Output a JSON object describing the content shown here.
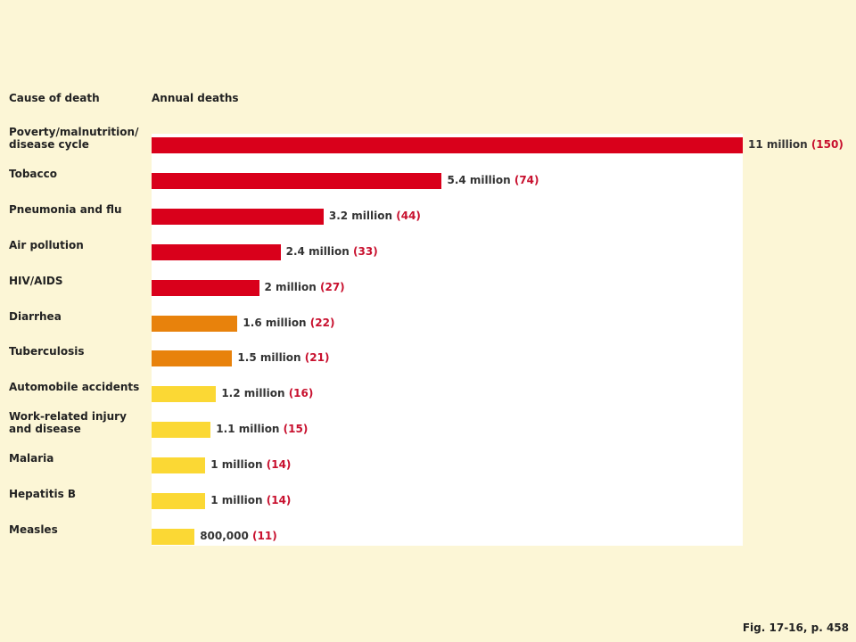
{
  "chart_data": {
    "type": "bar",
    "orientation": "horizontal",
    "category_header": "Cause of death",
    "value_header": "Annual deaths",
    "categories": [
      "Poverty/malnutrition/\ndisease cycle",
      "Tobacco",
      "Pneumonia and flu",
      "Air pollution",
      "HIV/AIDS",
      "Diarrhea",
      "Tuberculosis",
      "Automobile accidents",
      "Work-related injury\nand disease",
      "Malaria",
      "Hepatitis B",
      "Measles"
    ],
    "values": [
      11000000,
      5400000,
      3200000,
      2400000,
      2000000,
      1600000,
      1500000,
      1200000,
      1100000,
      1000000,
      1000000,
      800000
    ],
    "value_labels": [
      "11 million",
      "5.4 million",
      "3.2 million",
      "2.4 million",
      "2 million",
      "1.6 million",
      "1.5 million",
      "1.2 million",
      "1.1 million",
      "1 million",
      "1 million",
      "800,000"
    ],
    "paren_labels": [
      "(150)",
      "(74)",
      "(44)",
      "(33)",
      "(27)",
      "(22)",
      "(21)",
      "(16)",
      "(15)",
      "(14)",
      "(14)",
      "(11)"
    ],
    "colors": [
      "#d9001b",
      "#d9001b",
      "#d9001b",
      "#d9001b",
      "#d9001b",
      "#e8820c",
      "#e8820c",
      "#fbd834",
      "#fbd834",
      "#fbd834",
      "#fbd834",
      "#fbd834"
    ],
    "xlim": [
      0,
      11000000
    ],
    "footnote": "Fig. 17-16, p. 458"
  }
}
